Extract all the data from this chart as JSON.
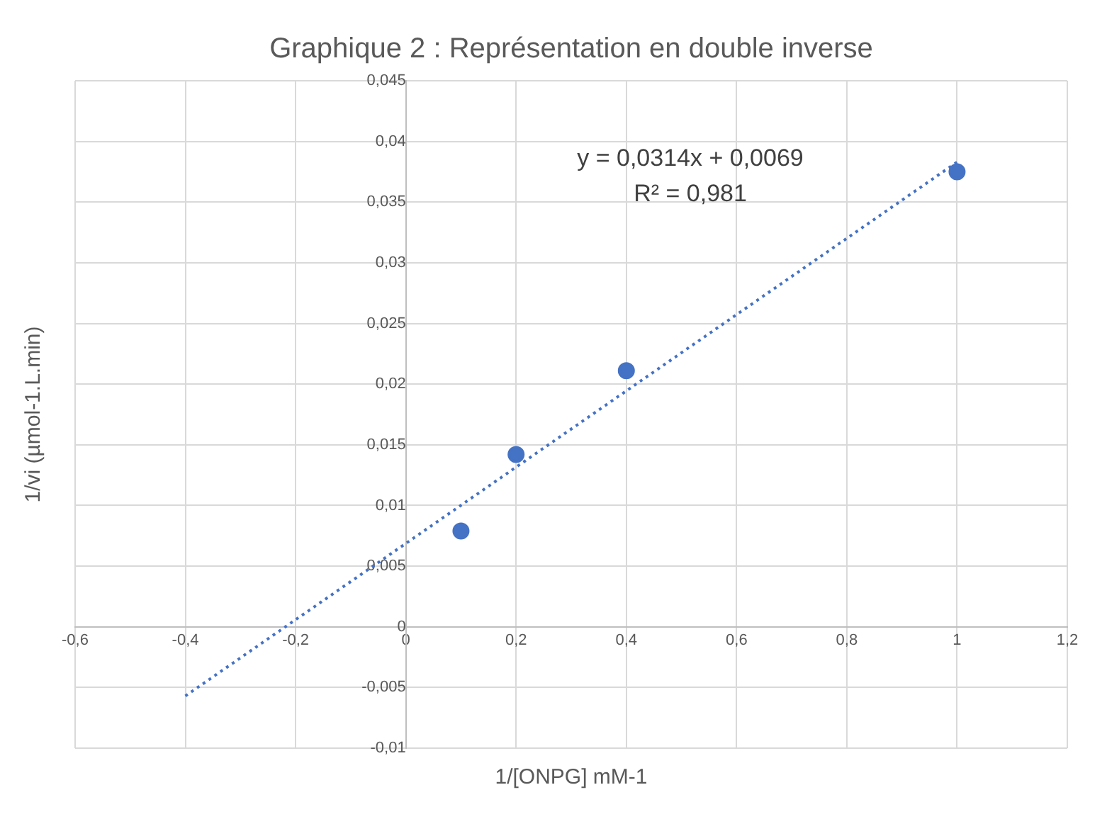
{
  "chart_data": {
    "type": "scatter",
    "title": "Graphique 2 : Représentation en double inverse",
    "xlabel": "1/[ONPG] mM-1",
    "ylabel": "1/vi (µmol-1.L.min)",
    "x": [
      0.1,
      0.2,
      0.4,
      1
    ],
    "series": [
      {
        "color": "#4472c4",
        "values": [
          0.0079,
          0.0142,
          0.0211,
          0.0375
        ],
        "marker": "circle"
      },
      {
        "type": "line",
        "x": [
          -0.4,
          1
        ],
        "values": [
          -0.0057,
          0.0383
        ],
        "color": "#4472c4",
        "line_style": "dotted",
        "marker": "none"
      }
    ],
    "xlim": [
      -0.6,
      1.2
    ],
    "xticks": [
      {
        "value": -0.6,
        "label": "-0,6"
      },
      {
        "value": -0.4,
        "label": "-0,4"
      },
      {
        "value": -0.2,
        "label": "-0,2"
      },
      0,
      {
        "value": 0.2,
        "label": "0,2"
      },
      {
        "value": 0.4,
        "label": "0,4"
      },
      {
        "value": 0.6,
        "label": "0,6"
      },
      {
        "value": 0.8,
        "label": "0,8"
      },
      1,
      {
        "value": 1.2,
        "label": "1,2"
      }
    ],
    "ylim": [
      -0.01,
      0.045
    ],
    "yticks": [
      {
        "value": -0.01,
        "label": "-0,01"
      },
      {
        "value": -0.005,
        "label": "-0,005"
      },
      0,
      {
        "value": 0.005,
        "label": "0,005"
      },
      {
        "value": 0.01,
        "label": "0,01"
      },
      {
        "value": 0.015,
        "label": "0,015"
      },
      {
        "value": 0.02,
        "label": "0,02"
      },
      {
        "value": 0.025,
        "label": "0,025"
      },
      {
        "value": 0.03,
        "label": "0,03"
      },
      {
        "value": 0.035,
        "label": "0,035"
      },
      {
        "value": 0.04,
        "label": "0,04"
      },
      {
        "value": 0.045,
        "label": "0,045"
      }
    ],
    "annotations": [
      "y = 0,0314x + 0,0069",
      "R² = 0,981"
    ],
    "grid": true,
    "legend": false
  }
}
